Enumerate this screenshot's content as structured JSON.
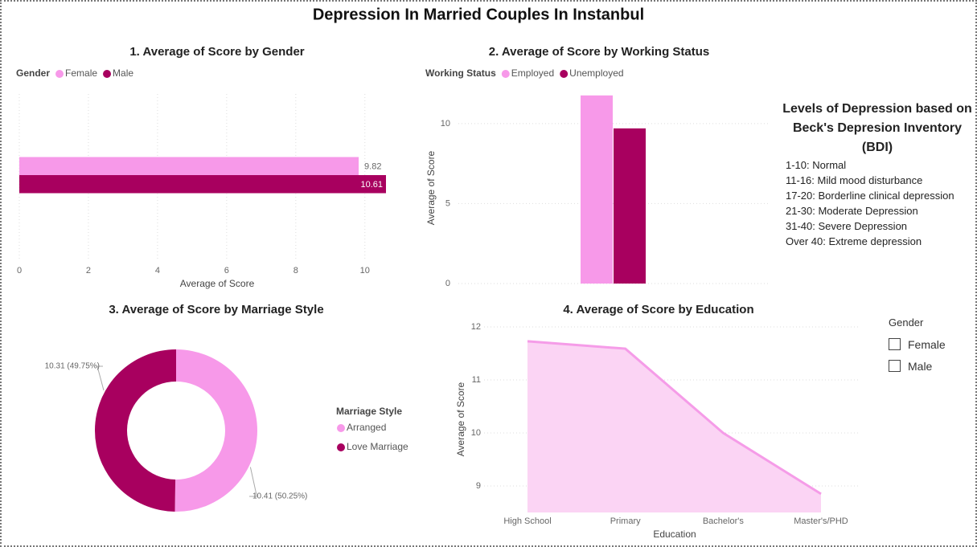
{
  "title": "Depression In Married Couples In Instanbul",
  "chart_data": [
    {
      "type": "hbar",
      "title": "1. Average of Score by Gender",
      "legend_title": "Gender",
      "x_label": "Average of Score",
      "categories": [
        "Female",
        "Male"
      ],
      "values": [
        9.82,
        10.61
      ],
      "colors": [
        "#f799e9",
        "#a8005f"
      ],
      "xlim": [
        0,
        10.61
      ],
      "xticks": [
        0,
        2,
        4,
        6,
        8,
        10
      ],
      "grid": true
    },
    {
      "type": "bar",
      "title": "2. Average of Score by Working Status",
      "legend_title": "Working Status",
      "y_label": "Average of Score",
      "categories": [
        null
      ],
      "series": [
        {
          "name": "Employed",
          "color": "#f799e9",
          "values": [
            11.76
          ]
        },
        {
          "name": "Unemployed",
          "color": "#a8005f",
          "values": [
            9.7
          ]
        }
      ],
      "ylim": [
        0,
        11.8
      ],
      "yticks": [
        0,
        5,
        10
      ],
      "grid": true
    },
    {
      "type": "donut",
      "title": "3. Average of Score by Marriage Style",
      "legend_title": "Marriage Style",
      "categories": [
        "Arranged",
        "Love Marriage"
      ],
      "values": [
        10.41,
        10.31
      ],
      "value_labels": [
        "10.41 (50.25%)",
        "10.31 (49.75%)"
      ],
      "colors": [
        "#f799e9",
        "#a8005f"
      ]
    },
    {
      "type": "area",
      "title": "4. Average of Score by Education",
      "x_label": "Education",
      "y_label": "Average of Score",
      "categories": [
        "High School",
        "Primary",
        "Bachelor's",
        "Master's/PHD"
      ],
      "values": [
        11.73,
        11.59,
        10.0,
        8.85
      ],
      "color": "#f59ce8",
      "fill_color": "#fbd4f4",
      "ylim": [
        8.5,
        12
      ],
      "yticks": [
        9,
        10,
        11,
        12
      ],
      "grid": true
    }
  ],
  "bdi_panel": {
    "title": "Levels of Depression based on Beck's Depresion Inventory (BDI)",
    "items": [
      "1-10: Normal",
      "11-16: Mild mood disturbance",
      "17-20: Borderline clinical depression",
      "21-30: Moderate Depression",
      "31-40: Severe Depression",
      "Over 40: Extreme depression"
    ]
  },
  "slicer": {
    "title": "Gender",
    "options": [
      "Female",
      "Male"
    ]
  }
}
